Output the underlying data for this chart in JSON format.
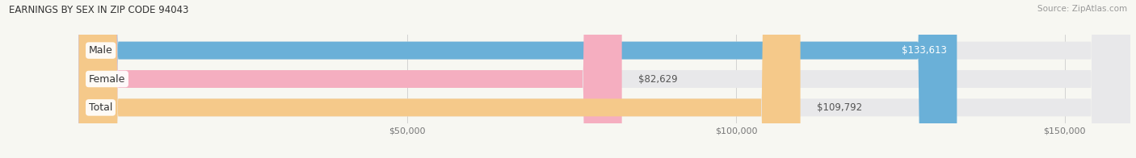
{
  "title": "EARNINGS BY SEX IN ZIP CODE 94043",
  "source": "Source: ZipAtlas.com",
  "categories": [
    "Male",
    "Female",
    "Total"
  ],
  "values": [
    133613,
    82629,
    109792
  ],
  "bar_colors": [
    "#6ab0d8",
    "#f5aec0",
    "#f5c98a"
  ],
  "bar_bg_color": "#e8e8ea",
  "value_labels": [
    "$133,613",
    "$82,629",
    "$109,792"
  ],
  "xmin": -12000,
  "xmax": 160000,
  "xticks": [
    50000,
    100000,
    150000
  ],
  "xtick_labels": [
    "$50,000",
    "$100,000",
    "$150,000"
  ],
  "fig_width": 14.06,
  "fig_height": 1.96,
  "dpi": 100,
  "background_color": "#f7f7f2",
  "title_fontsize": 8.5,
  "bar_label_fontsize": 9,
  "value_fontsize": 8.5,
  "tick_fontsize": 8,
  "source_fontsize": 7.5,
  "bar_height": 0.62,
  "bar_gap": 1.0,
  "rounding_size": 6000
}
